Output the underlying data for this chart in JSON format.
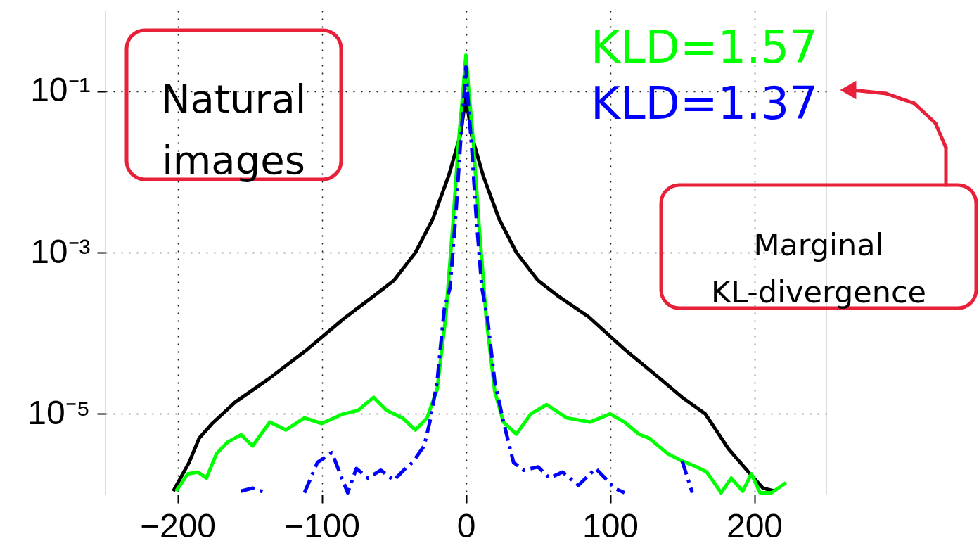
{
  "chart_data": {
    "type": "line",
    "log": true,
    "grid": true,
    "legend": "top right",
    "xlim": [
      -250,
      250
    ],
    "ylim": [
      1e-06,
      1
    ],
    "xticks": [
      {
        "value": -200,
        "label": "−200"
      },
      {
        "value": -100,
        "label": "−100"
      },
      0,
      100,
      200
    ],
    "yticks": [
      {
        "value": 1e-05,
        "label": "10⁻⁵"
      },
      {
        "value": 0.001,
        "label": "10⁻³"
      },
      {
        "value": 0.1,
        "label": "10⁻¹"
      }
    ],
    "annotations": [
      "Natural images",
      "Marginal KL-divergence"
    ],
    "series": [
      {
        "color": "#000000",
        "line_style": "solid",
        "x": [
          -203,
          -198,
          -192,
          -185,
          -176,
          -160,
          -137,
          -110,
          -85,
          -65,
          -50,
          -35,
          -23,
          -12,
          -4,
          0,
          4,
          12,
          23,
          35,
          50,
          65,
          85,
          110,
          135,
          150,
          166,
          182,
          196,
          206,
          214
        ],
        "values": [
          1.1e-06,
          1.6e-06,
          2.5e-06,
          5e-06,
          7.6e-06,
          1.4e-05,
          2.7e-05,
          6.3e-05,
          0.00015,
          0.00028,
          0.00045,
          0.001,
          0.0026,
          0.0089,
          0.028,
          0.085,
          0.028,
          0.0089,
          0.0026,
          0.001,
          0.00045,
          0.00028,
          0.00016,
          6.3e-05,
          2.7e-05,
          1.6e-05,
          1e-05,
          3.7e-06,
          1.9e-06,
          1.2e-06,
          1.1e-06
        ]
      },
      {
        "name": "KLD=1.57",
        "color": "#00ff00",
        "line_style": "solid",
        "x": [
          -201,
          -193,
          -186,
          -180,
          -173,
          -165,
          -156,
          -148,
          -136,
          -125,
          -112,
          -100,
          -85,
          -75,
          -64,
          -55,
          -44,
          -35,
          -27,
          -20,
          -14,
          -9,
          -5,
          -2,
          0,
          2,
          5,
          9,
          14,
          20,
          26,
          35,
          45,
          56,
          70,
          86,
          100,
          110,
          120,
          127,
          140,
          150,
          160,
          167,
          177,
          184,
          192,
          198,
          204,
          212,
          222
        ],
        "values": [
          1.1e-06,
          1.8e-06,
          1.9e-06,
          1.6e-06,
          3.2e-06,
          4.5e-06,
          5.5e-06,
          4e-06,
          7.9e-06,
          6.3e-06,
          8.9e-06,
          7.6e-06,
          1e-05,
          1.1e-05,
          1.6e-05,
          1.1e-05,
          8.9e-06,
          6.3e-06,
          8.9e-06,
          2e-05,
          0.00016,
          0.0023,
          0.025,
          0.1,
          0.28,
          0.1,
          0.025,
          0.0023,
          0.00016,
          1.9e-05,
          7.9e-06,
          5.6e-06,
          1e-05,
          1.3e-05,
          8.9e-06,
          7.9e-06,
          1e-05,
          7.9e-06,
          5.6e-06,
          5e-06,
          3.2e-06,
          2.6e-06,
          2.2e-06,
          1.9e-06,
          1.05e-06,
          1.6e-06,
          1.1e-06,
          1.8e-06,
          1.05e-06,
          1.05e-06,
          1.4e-06
        ]
      },
      {
        "name": "KLD=1.37",
        "color": "#0000ff",
        "line_style": "dashed",
        "x": [
          -156,
          -148,
          -139,
          -130,
          -112,
          -103,
          -93,
          -82,
          -76,
          -68,
          -59,
          -50,
          -42,
          -37,
          -29,
          -25,
          -20,
          -15,
          -11,
          -7,
          -4,
          -1,
          0,
          1,
          4,
          7,
          11,
          15,
          20,
          26,
          33,
          40,
          50,
          58,
          67,
          78,
          90,
          98,
          103,
          110,
          120,
          150,
          157
        ],
        "values": [
          1.1e-06,
          1.2e-06,
          1.05e-06,
          null,
          1.05e-06,
          2.5e-06,
          3.3e-06,
          1.05e-06,
          2.1e-06,
          1.6e-06,
          2e-06,
          1.5e-06,
          2.1e-06,
          2.5e-06,
          4e-06,
          8e-06,
          2.5e-05,
          0.0002,
          0.00037,
          0.003,
          0.02,
          0.1,
          0.2,
          0.1,
          0.02,
          0.003,
          0.00037,
          0.00015,
          2.5e-05,
          8e-06,
          2.5e-06,
          2e-06,
          2.2e-06,
          1.6e-06,
          1.9e-06,
          1.3e-06,
          2.1e-06,
          1.5e-06,
          1.2e-06,
          1.05e-06,
          null,
          2.6e-06,
          1.05e-06
        ]
      }
    ]
  }
}
